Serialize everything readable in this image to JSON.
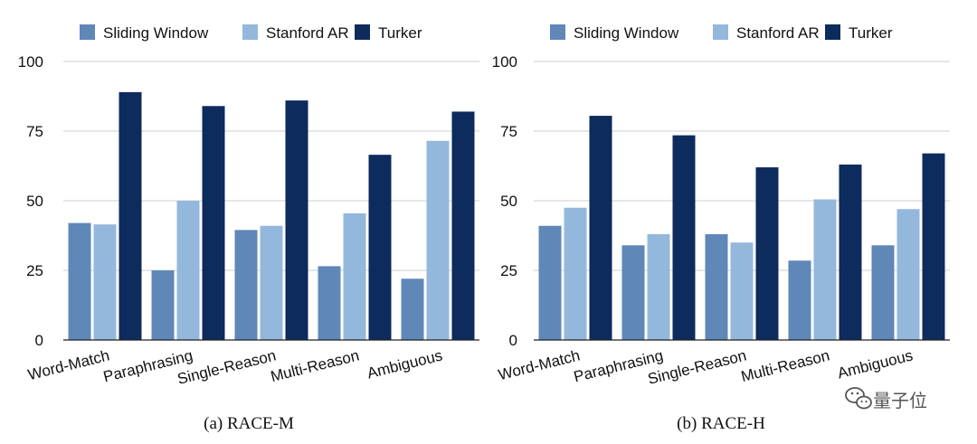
{
  "chart_data": [
    {
      "type": "bar",
      "title": "",
      "caption": "(a) RACE-M",
      "categories": [
        "Word-Match",
        "Paraphrasing",
        "Single-Reason",
        "Multi-Reason",
        "Ambiguous"
      ],
      "series": [
        {
          "name": "Sliding Window",
          "color": "#5f87b8",
          "values": [
            42,
            25,
            39.5,
            26.5,
            22
          ]
        },
        {
          "name": "Stanford AR",
          "color": "#94b8dc",
          "values": [
            41.5,
            50,
            41,
            45.5,
            71.5
          ]
        },
        {
          "name": "Turker",
          "color": "#0d2b5c",
          "values": [
            89,
            84,
            86,
            66.5,
            82
          ]
        }
      ],
      "yticks": [
        0,
        25,
        50,
        75,
        100
      ],
      "ylim": [
        0,
        100
      ],
      "xlabel": "",
      "ylabel": "",
      "grid": true,
      "legend": "top"
    },
    {
      "type": "bar",
      "title": "",
      "caption": "(b) RACE-H",
      "categories": [
        "Word-Match",
        "Paraphrasing",
        "Single-Reason",
        "Multi-Reason",
        "Ambiguous"
      ],
      "series": [
        {
          "name": "Sliding Window",
          "color": "#5f87b8",
          "values": [
            41,
            34,
            38,
            28.5,
            34
          ]
        },
        {
          "name": "Stanford AR",
          "color": "#94b8dc",
          "values": [
            47.5,
            38,
            35,
            50.5,
            47
          ]
        },
        {
          "name": "Turker",
          "color": "#0d2b5c",
          "values": [
            80.5,
            73.5,
            62,
            63,
            67
          ]
        }
      ],
      "yticks": [
        0,
        25,
        50,
        75,
        100
      ],
      "ylim": [
        0,
        100
      ],
      "xlabel": "",
      "ylabel": "",
      "grid": true,
      "legend": "top"
    }
  ],
  "watermark": {
    "text": "量子位",
    "icon": "wechat-icon"
  }
}
